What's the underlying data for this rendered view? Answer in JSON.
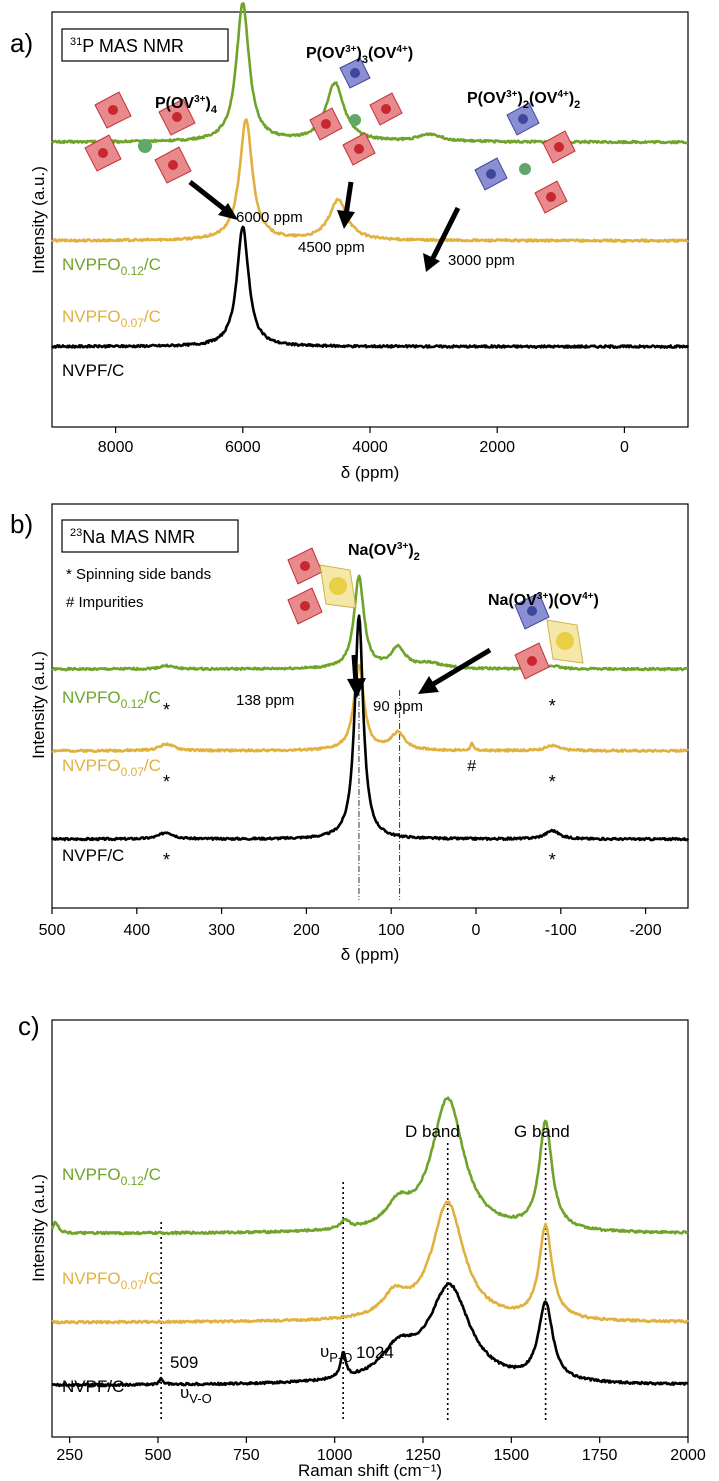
{
  "colors": {
    "green": "#6fa32a",
    "orange": "#e0b13f",
    "black": "#000000",
    "v3": "#d9444a",
    "v4": "#4a55a8",
    "p": "#5fa86a",
    "na": "#e9cf43"
  },
  "chart_data": [
    {
      "panel": "a)",
      "type": "line",
      "boxlabel_sup": "31",
      "boxlabel_main": "P MAS NMR",
      "xlabel": "δ (ppm)",
      "ylabel": "Intensity (a.u.)",
      "xlim": [
        9000,
        -1000
      ],
      "xticks": [
        8000,
        6000,
        4000,
        2000,
        0
      ],
      "series": [
        {
          "name": "NVPFO",
          "sub": "0.12",
          "suffix": "/C",
          "color": "#6fa32a",
          "baseline": 0.72,
          "peaks": [
            [
              6000,
              0.38,
              120
            ],
            [
              4550,
              0.16,
              170
            ],
            [
              3050,
              0.02,
              220
            ]
          ]
        },
        {
          "name": "NVPFO",
          "sub": "0.07",
          "suffix": "/C",
          "color": "#e0b13f",
          "baseline": 0.45,
          "peaks": [
            [
              5950,
              0.33,
              120
            ],
            [
              4500,
              0.11,
              170
            ]
          ]
        },
        {
          "name": "NVPF/C",
          "sub": "",
          "suffix": "",
          "color": "#000000",
          "baseline": 0.16,
          "peaks": [
            [
              6000,
              0.33,
              110
            ]
          ]
        }
      ],
      "annotations": {
        "p6000": "6000 ppm",
        "p4500": "4500 ppm",
        "p3000": "3000 ppm",
        "s1_main": "P(OV",
        "s1_sup": "3+",
        "s1_tail": ")",
        "s1_sub": "4",
        "s2_main": "P(OV",
        "s2_sup": "3+",
        "s2_mid": ")",
        "s2_sub": "3",
        "s2_main2": "(OV",
        "s2_sup2": "4+",
        "s2_tail": ")",
        "s3_main": "P(OV",
        "s3_sup": "3+",
        "s3_mid": ")",
        "s3_sub": "2",
        "s3_main2": "(OV",
        "s3_sup2": "4+",
        "s3_tail": ")",
        "s3_sub2": "2"
      }
    },
    {
      "panel": "b)",
      "type": "line",
      "boxlabel_sup": "23",
      "boxlabel_main": "Na MAS NMR",
      "legend_star": "Spinning side bands",
      "legend_hash": "Impurities",
      "xlabel": "δ (ppm)",
      "ylabel": "Intensity (a.u.)",
      "xlim": [
        500,
        -250
      ],
      "xticks": [
        500,
        400,
        300,
        200,
        100,
        0,
        -100,
        -200
      ],
      "series": [
        {
          "name": "NVPFO",
          "sub": "0.12",
          "suffix": "/C",
          "color": "#6fa32a",
          "baseline": 0.62,
          "peaks": [
            [
              138,
              0.27,
              7
            ],
            [
              92,
              0.06,
              10
            ],
            [
              55,
              0.015,
              20
            ],
            [
              365,
              0.01,
              10
            ],
            [
              -90,
              0.01,
              10
            ]
          ]
        },
        {
          "name": "NVPFO",
          "sub": "0.07",
          "suffix": "/C",
          "color": "#e0b13f",
          "baseline": 0.38,
          "peaks": [
            [
              138,
              0.25,
              7
            ],
            [
              92,
              0.05,
              10
            ],
            [
              365,
              0.02,
              10
            ],
            [
              -90,
              0.015,
              10
            ],
            [
              5,
              0.02,
              2
            ]
          ]
        },
        {
          "name": "NVPF/C",
          "sub": "",
          "suffix": "",
          "color": "#000000",
          "baseline": 0.12,
          "peaks": [
            [
              138,
              0.66,
              6
            ],
            [
              365,
              0.02,
              10
            ],
            [
              -90,
              0.025,
              10
            ]
          ]
        }
      ],
      "annotations": {
        "p138": "138 ppm",
        "p90": "90 ppm",
        "star": "*",
        "hash": "#",
        "s1_main": "Na(OV",
        "s1_sup": "3+",
        "s1_tail": ")",
        "s1_sub": "2",
        "s2_main": "Na(OV",
        "s2_sup": "3+",
        "s2_mid": ")(OV",
        "s2_sup2": "4+",
        "s2_tail": ")"
      }
    },
    {
      "panel": "c)",
      "type": "line",
      "xlabel": "Raman shift (cm⁻¹)",
      "ylabel": "Intensity (a.u.)",
      "xlim": [
        200,
        2000
      ],
      "xticks": [
        250,
        500,
        750,
        1000,
        1250,
        1500,
        1750,
        2000
      ],
      "series": [
        {
          "name": "NVPFO",
          "sub": "0.12",
          "suffix": "/C",
          "color": "#6fa32a",
          "baseline": 0.49,
          "peaks": [
            [
              1320,
              0.36,
              55
            ],
            [
              1180,
              0.06,
              40
            ],
            [
              1597,
              0.29,
              22
            ],
            [
              1030,
              0.02,
              15
            ],
            [
              210,
              0.03,
              10
            ]
          ]
        },
        {
          "name": "NVPFO",
          "sub": "0.07",
          "suffix": "/C",
          "color": "#e0b13f",
          "baseline": 0.25,
          "peaks": [
            [
              1320,
              0.32,
              55
            ],
            [
              1170,
              0.06,
              40
            ],
            [
              1597,
              0.25,
              22
            ]
          ]
        },
        {
          "name": "NVPF/C",
          "sub": "",
          "suffix": "",
          "color": "#000000",
          "baseline": 0.08,
          "peaks": [
            [
              1325,
              0.26,
              70
            ],
            [
              1180,
              0.08,
              60
            ],
            [
              1597,
              0.21,
              24
            ],
            [
              1024,
              0.065,
              9
            ],
            [
              509,
              0.015,
              7
            ]
          ]
        }
      ],
      "annotations": {
        "dband": "D band",
        "gband": "G band",
        "v509": "509",
        "v1024": "1024",
        "vo_main": "υ",
        "vo_sub": "V-O",
        "po_main": "υ",
        "po_sub": "P-O"
      }
    }
  ]
}
